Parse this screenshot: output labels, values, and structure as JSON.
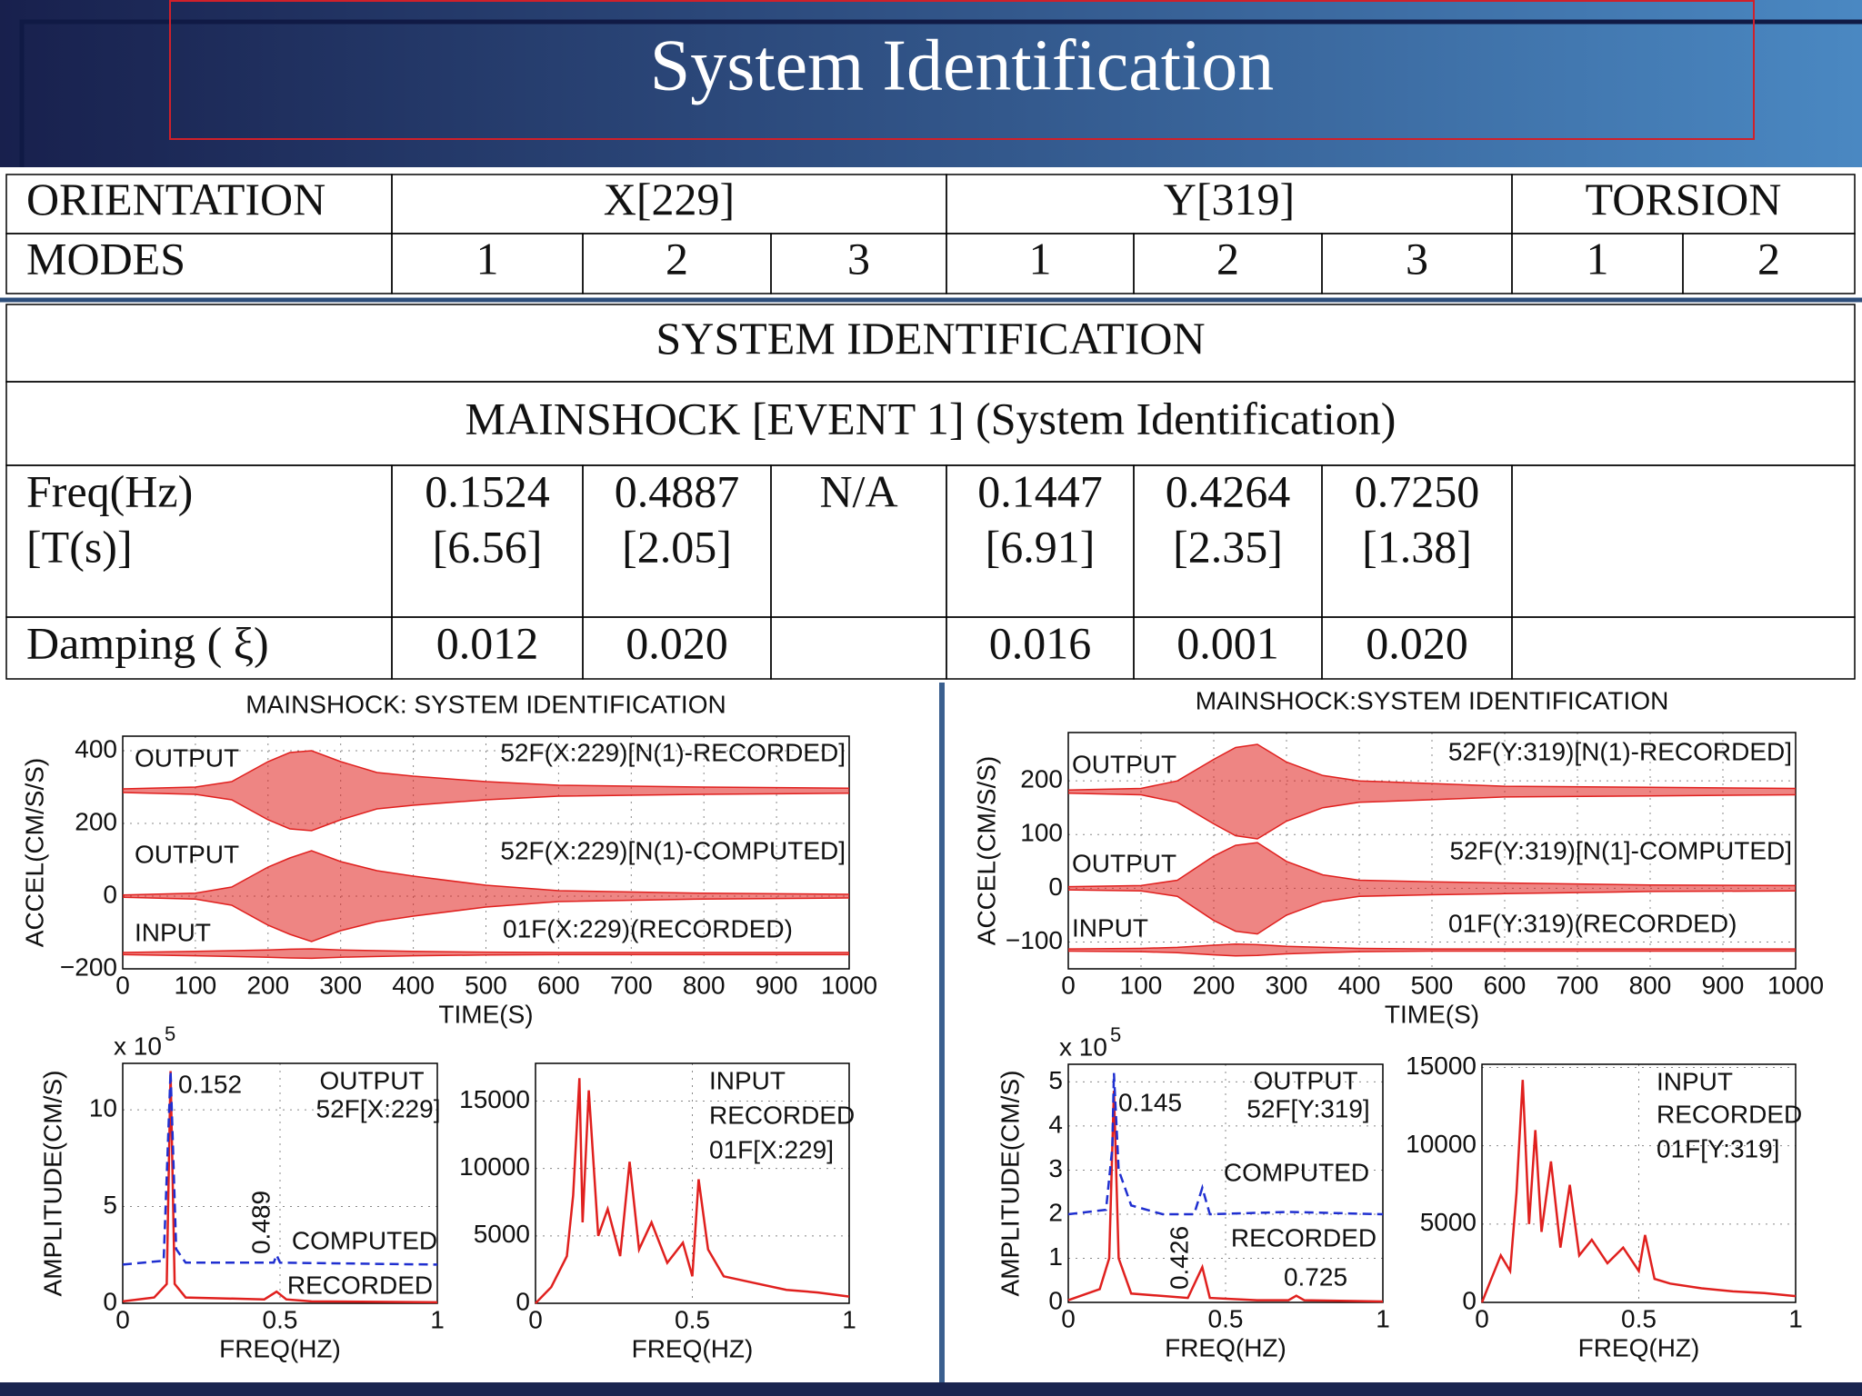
{
  "header": {
    "title": "System Identification"
  },
  "table": {
    "rows": [
      [
        "ORIENTATION",
        "X[229]",
        "Y[319]",
        "TORSION"
      ],
      [
        "MODES",
        "1",
        "2",
        "3",
        "1",
        "2",
        "3",
        "1",
        "2"
      ],
      [
        "SYSTEM IDENTIFICATION"
      ],
      [
        "MAINSHOCK [EVENT 1] (System Identification)"
      ],
      [
        [
          "Freq(Hz)",
          "[T(s)]"
        ],
        [
          "0.1524",
          "[6.56]"
        ],
        [
          "0.4887",
          "[2.05]"
        ],
        [
          "N/A"
        ],
        [
          "0.1447",
          "[6.91]"
        ],
        [
          "0.4264",
          "[2.35]"
        ],
        [
          "0.7250",
          "[1.38]"
        ],
        null
      ],
      [
        "Damping  ( ξ)",
        "0.012",
        "0.020",
        null,
        "0.016",
        "0.001",
        "0.020",
        null
      ]
    ]
  },
  "chart_data": [
    {
      "type": "line",
      "title": "MAINSHOCK: SYSTEM IDENTIFICATION",
      "xlabel": "TIME(S)",
      "ylabel": "ACCEL(CM/S/S)",
      "xlim": [
        0,
        1000
      ],
      "xticks": [
        0,
        100,
        200,
        300,
        400,
        500,
        600,
        700,
        800,
        900,
        1000
      ],
      "ylim": [
        -200,
        440
      ],
      "yticks": [
        {
          "value": -200,
          "label": "−200"
        },
        0,
        200,
        400
      ],
      "grid": true,
      "series": [
        {
          "label": "OUTPUT",
          "name": "52F(X:229)[N(1)-RECORDED]",
          "color": "#e0201e",
          "x": [
            0,
            100,
            150,
            200,
            230,
            260,
            300,
            350,
            400,
            500,
            600,
            800,
            1000
          ],
          "values": [
            295,
            300,
            315,
            370,
            395,
            400,
            370,
            340,
            330,
            315,
            305,
            300,
            297
          ],
          "lower": [
            285,
            280,
            265,
            210,
            185,
            180,
            210,
            240,
            250,
            265,
            275,
            280,
            283
          ]
        },
        {
          "label": "OUTPUT",
          "name": "52F(X:229)[N(1)-COMPUTED]",
          "color": "#e0201e",
          "x": [
            0,
            100,
            150,
            200,
            230,
            260,
            300,
            350,
            400,
            500,
            600,
            800,
            1000
          ],
          "values": [
            3,
            8,
            25,
            80,
            105,
            125,
            95,
            70,
            55,
            30,
            15,
            8,
            5
          ],
          "lower": [
            -3,
            -8,
            -25,
            -80,
            -105,
            -125,
            -95,
            -70,
            -55,
            -30,
            -15,
            -8,
            -5
          ]
        },
        {
          "label": "INPUT",
          "name": "01F(X:229)(RECORDED)",
          "color": "#e0201e",
          "x": [
            0,
            100,
            150,
            200,
            230,
            260,
            300,
            350,
            400,
            500,
            600,
            800,
            1000
          ],
          "values": [
            -155,
            -152,
            -150,
            -148,
            -146,
            -145,
            -148,
            -150,
            -152,
            -154,
            -155,
            -155,
            -155
          ],
          "lower": [
            -161,
            -164,
            -166,
            -168,
            -170,
            -171,
            -168,
            -166,
            -164,
            -162,
            -161,
            -161,
            -161
          ]
        }
      ]
    },
    {
      "type": "line",
      "title": "MAINSHOCK:SYSTEM IDENTIFICATION",
      "xlabel": "TIME(S)",
      "ylabel": "ACCEL(CM/S/S)",
      "xlim": [
        0,
        1000
      ],
      "xticks": [
        0,
        100,
        200,
        300,
        400,
        500,
        600,
        700,
        800,
        900,
        1000
      ],
      "ylim": [
        -150,
        290
      ],
      "yticks": [
        {
          "value": -100,
          "label": "−100"
        },
        0,
        100,
        200
      ],
      "grid": true,
      "series": [
        {
          "label": "OUTPUT",
          "name": "52F(Y:319)[N(1)-RECORDED]",
          "color": "#e0201e",
          "x": [
            0,
            100,
            150,
            200,
            230,
            260,
            300,
            350,
            400,
            500,
            600,
            800,
            1000
          ],
          "values": [
            183,
            186,
            200,
            240,
            262,
            268,
            235,
            210,
            200,
            195,
            190,
            188,
            186
          ],
          "lower": [
            177,
            174,
            160,
            120,
            98,
            92,
            125,
            150,
            160,
            165,
            170,
            172,
            174
          ]
        },
        {
          "label": "OUTPUT",
          "name": "52F(Y:319)[N(1]-COMPUTED]",
          "color": "#e0201e",
          "x": [
            0,
            100,
            150,
            200,
            230,
            260,
            300,
            350,
            400,
            500,
            600,
            800,
            1000
          ],
          "values": [
            3,
            5,
            15,
            60,
            80,
            85,
            50,
            25,
            15,
            12,
            10,
            6,
            5
          ],
          "lower": [
            -3,
            -5,
            -15,
            -60,
            -80,
            -85,
            -50,
            -25,
            -15,
            -12,
            -10,
            -6,
            -5
          ]
        },
        {
          "label": "INPUT",
          "name": "01F(Y:319)(RECORDED)",
          "color": "#e0201e",
          "x": [
            0,
            100,
            150,
            200,
            230,
            260,
            300,
            350,
            400,
            500,
            600,
            800,
            1000
          ],
          "values": [
            -113,
            -112,
            -110,
            -106,
            -104,
            -105,
            -108,
            -110,
            -112,
            -113,
            -113,
            -113,
            -113
          ],
          "lower": [
            -117,
            -118,
            -120,
            -124,
            -126,
            -125,
            -122,
            -120,
            -118,
            -117,
            -117,
            -117,
            -117
          ]
        }
      ]
    },
    {
      "type": "line",
      "xlabel": "FREQ(HZ)",
      "ylabel": "AMPLITUDE(CM/S)",
      "scale_label": {
        "base": "x 10",
        "power": "5"
      },
      "xlim": [
        0,
        1
      ],
      "xticks": [
        0,
        0.5,
        1
      ],
      "ylim": [
        0,
        12.4
      ],
      "yticks": [
        0,
        5,
        10
      ],
      "grid": true,
      "annotations": [
        "0.152",
        "0.489",
        "OUTPUT",
        "52F[X:229]"
      ],
      "series": [
        {
          "name": "RECORDED",
          "color": "#e0201e",
          "dash": false,
          "x": [
            0,
            0.1,
            0.14,
            0.152,
            0.165,
            0.2,
            0.45,
            0.489,
            0.52,
            0.6,
            1
          ],
          "values": [
            0.1,
            0.3,
            1,
            12,
            1,
            0.3,
            0.2,
            0.6,
            0.2,
            0.1,
            0.05
          ]
        },
        {
          "name": "COMPUTED",
          "color": "#1f2fd0",
          "dash": true,
          "x": [
            0,
            0.13,
            0.152,
            0.17,
            0.2,
            0.48,
            0.489,
            0.5,
            1
          ],
          "values": [
            2,
            2.2,
            12,
            2.8,
            2.1,
            2.1,
            2.5,
            2.1,
            2
          ]
        }
      ]
    },
    {
      "type": "line",
      "xlabel": "FREQ(HZ)",
      "xlim": [
        0,
        1
      ],
      "xticks": [
        0,
        0.5,
        1
      ],
      "ylim": [
        0,
        17800
      ],
      "yticks": [
        0,
        5000,
        10000,
        15000
      ],
      "grid": true,
      "annotations": [
        "INPUT",
        "RECORDED",
        "01F[X:229]"
      ],
      "series": [
        {
          "color": "#e0201e",
          "dash": false,
          "x": [
            0,
            0.05,
            0.1,
            0.12,
            0.14,
            0.15,
            0.17,
            0.2,
            0.23,
            0.27,
            0.3,
            0.33,
            0.37,
            0.42,
            0.47,
            0.5,
            0.52,
            0.55,
            0.6,
            0.7,
            0.8,
            0.9,
            1
          ],
          "values": [
            0,
            1200,
            3500,
            8000,
            16700,
            6000,
            15800,
            5000,
            7000,
            3500,
            10500,
            4000,
            6000,
            3000,
            4500,
            2000,
            9200,
            4000,
            2000,
            1500,
            1000,
            800,
            500
          ]
        }
      ]
    },
    {
      "type": "line",
      "xlabel": "FREQ(HZ)",
      "ylabel": "AMPLITUDE(CM/S)",
      "scale_label": {
        "base": "x 10",
        "power": "5"
      },
      "xlim": [
        0,
        1
      ],
      "xticks": [
        0,
        0.5,
        1
      ],
      "ylim": [
        0,
        5.4
      ],
      "yticks": [
        0,
        1,
        2,
        3,
        4,
        5
      ],
      "grid": true,
      "annotations": [
        "0.145",
        "0.426",
        "0.725",
        "OUTPUT",
        "52F[Y:319]"
      ],
      "series": [
        {
          "name": "RECORDED",
          "color": "#e0201e",
          "dash": false,
          "x": [
            0,
            0.1,
            0.13,
            0.145,
            0.16,
            0.2,
            0.38,
            0.426,
            0.45,
            0.6,
            0.7,
            0.725,
            0.75,
            1
          ],
          "values": [
            0.05,
            0.3,
            1,
            4.8,
            1,
            0.2,
            0.1,
            0.8,
            0.1,
            0.05,
            0.05,
            0.15,
            0.05,
            0.02
          ]
        },
        {
          "name": "COMPUTED",
          "color": "#1f2fd0",
          "dash": true,
          "x": [
            0,
            0.12,
            0.14,
            0.145,
            0.16,
            0.2,
            0.3,
            0.4,
            0.426,
            0.45,
            0.7,
            1
          ],
          "values": [
            2,
            2.1,
            3.5,
            5.2,
            3,
            2.2,
            2,
            2,
            2.6,
            2,
            2.05,
            2
          ]
        }
      ]
    },
    {
      "type": "line",
      "xlabel": "FREQ(HZ)",
      "xlim": [
        0,
        1
      ],
      "xticks": [
        0,
        0.5,
        1
      ],
      "ylim": [
        0,
        15200
      ],
      "yticks": [
        0,
        5000,
        10000,
        15000
      ],
      "grid": true,
      "annotations": [
        "INPUT",
        "RECORDED",
        "01F[Y:319]"
      ],
      "series": [
        {
          "color": "#e0201e",
          "dash": false,
          "x": [
            0,
            0.03,
            0.06,
            0.09,
            0.11,
            0.13,
            0.15,
            0.17,
            0.19,
            0.22,
            0.25,
            0.28,
            0.31,
            0.35,
            0.4,
            0.45,
            0.5,
            0.52,
            0.55,
            0.6,
            0.7,
            0.8,
            0.9,
            1
          ],
          "values": [
            0,
            1500,
            3000,
            2000,
            7000,
            14200,
            5000,
            11000,
            4500,
            9000,
            3500,
            7500,
            3000,
            4000,
            2500,
            3500,
            2000,
            4300,
            1500,
            1200,
            900,
            700,
            600,
            400
          ]
        }
      ]
    }
  ]
}
